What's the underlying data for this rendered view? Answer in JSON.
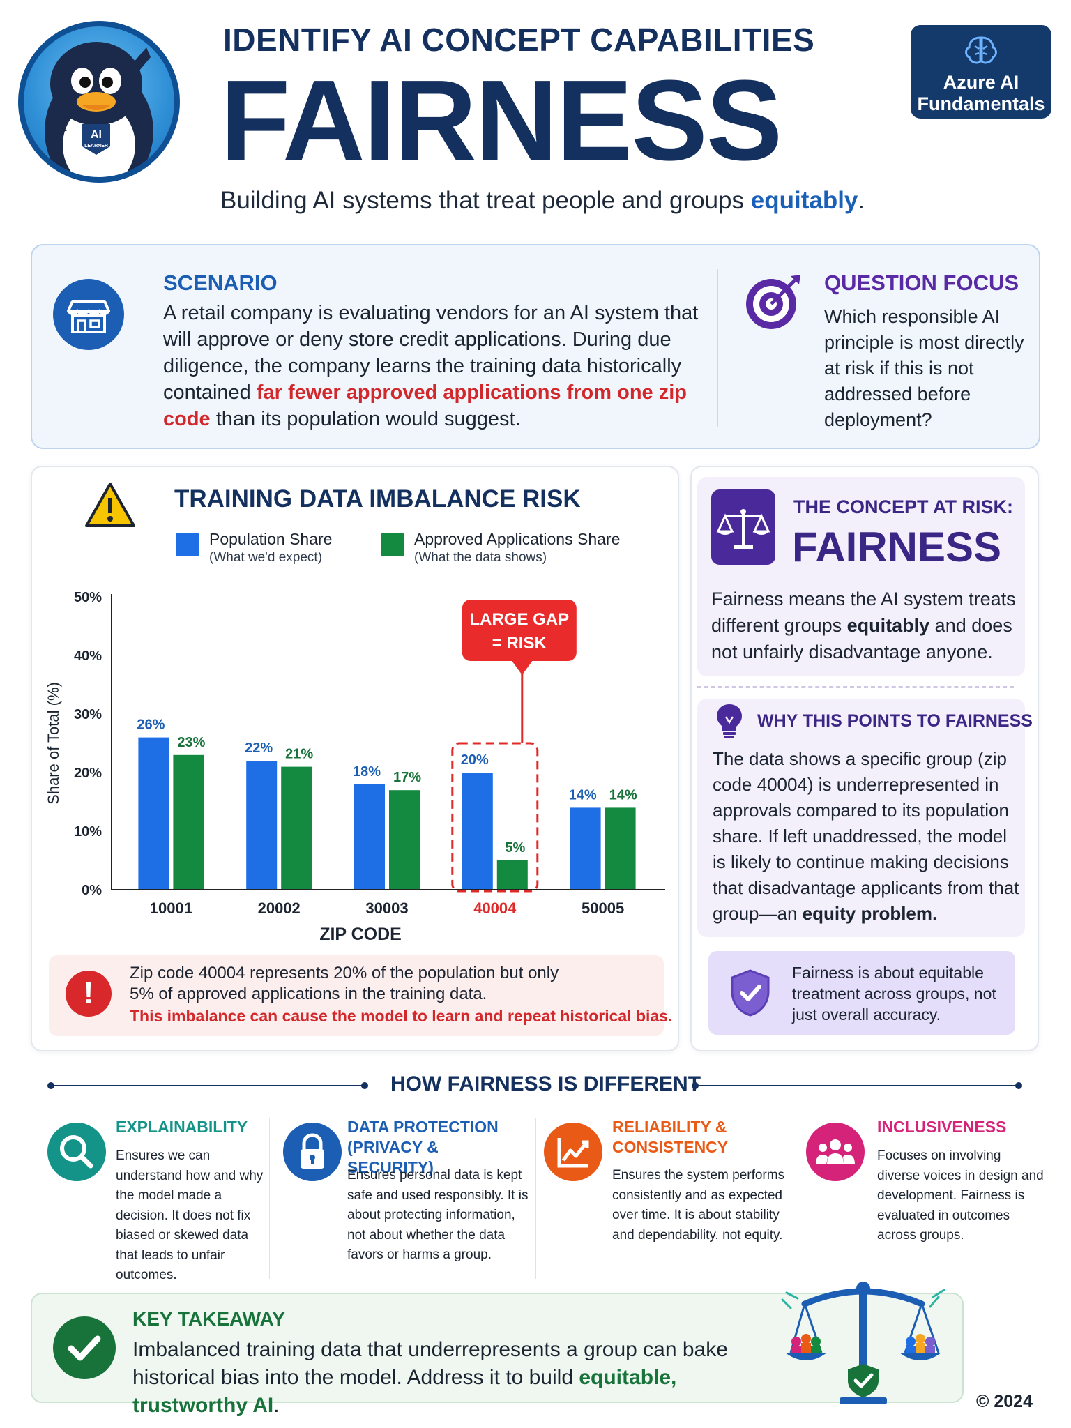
{
  "header": {
    "kicker": "IDENTIFY AI CONCEPT CAPABILITIES",
    "title": "FAIRNESS",
    "subtitle_start": "Building AI systems that treat people and groups ",
    "subtitle_highlight": "equitably",
    "subtitle_end": ".",
    "mascot_badge_top": "AI",
    "mascot_badge_bottom": "LEARNER",
    "badge_line1": "Azure AI",
    "badge_line2": "Fundamentals"
  },
  "scenario": {
    "heading": "SCENARIO",
    "body_start": "A retail company is evaluating vendors for an AI system that will approve or deny store credit applications. During due diligence, the company learns the training data historically contained ",
    "body_highlight": "far fewer approved applications from one zip code",
    "body_end": " than its population would suggest."
  },
  "question_focus": {
    "heading": "QUESTION FOCUS",
    "body": "Which responsible AI principle is most directly at risk if this is not addressed before deployment?"
  },
  "chart_data": {
    "type": "bar",
    "title": "TRAINING DATA IMBALANCE RISK",
    "xlabel": "ZIP CODE",
    "ylabel": "Share of Total (%)",
    "ylim": [
      0,
      50
    ],
    "yticks": [
      "0%",
      "10%",
      "20%",
      "30%",
      "40%",
      "50%"
    ],
    "categories": [
      "10001",
      "20002",
      "30003",
      "40004",
      "50005"
    ],
    "highlight_category": "40004",
    "series": [
      {
        "name": "Population Share",
        "subtitle": "(What we'd expect)",
        "color": "#1e6fe6",
        "label_color": "#1b5eb3",
        "values": [
          26,
          22,
          18,
          20,
          14
        ],
        "labels": [
          "26%",
          "22%",
          "18%",
          "20%",
          "14%"
        ]
      },
      {
        "name": "Approved Applications Share",
        "subtitle": "(What the data shows)",
        "color": "#138a3f",
        "label_color": "#17733a",
        "values": [
          23,
          21,
          17,
          5,
          14
        ],
        "labels": [
          "23%",
          "21%",
          "17%",
          "5%",
          "14%"
        ]
      }
    ],
    "callout_line1": "LARGE GAP",
    "callout_line2": "= RISK"
  },
  "chart_note": {
    "line1": "Zip code 40004 represents 20% of the population but only",
    "line2": "5% of approved applications in the training data.",
    "line3": "This imbalance can cause the model to learn and repeat historical bias."
  },
  "concept": {
    "kicker": "THE CONCEPT AT RISK:",
    "title": "FAIRNESS",
    "body_start": "Fairness means the AI system treats different groups ",
    "body_bold": "equitably",
    "body_end": " and does not unfairly disadvantage anyone."
  },
  "why": {
    "heading": "WHY THIS POINTS TO FAIRNESS",
    "body_start": "The data shows a specific group (zip code 40004) is underrepresented in approvals compared to its population share. If left unaddressed, the model is likely to continue making decisions that disadvantage applicants from that group—an ",
    "body_bold": "equity problem."
  },
  "fairness_note": "Fairness is about equitable treatment across groups, not just overall accuracy.",
  "how_different": {
    "title": "HOW FAIRNESS IS DIFFERENT",
    "items": [
      {
        "title": "EXPLAINABILITY",
        "body": "Ensures we can understand how and why the model made a decision. It does not fix biased or skewed data that leads to unfair outcomes.",
        "color": "#149488",
        "icon": "magnifier-icon"
      },
      {
        "title": "DATA PROTECTION (PRIVACY & SECURITY)",
        "body": "Ensures personal data is kept safe and used responsibly. It is about protecting information, not about whether the data favors or harms a group.",
        "color": "#1b5eb3",
        "icon": "lock-icon"
      },
      {
        "title": "RELIABILITY & CONSISTENCY",
        "body": "Ensures the system performs consistently and as expected over time. It is about stability and dependability. not equity.",
        "color": "#ea5a17",
        "icon": "trend-chart-icon"
      },
      {
        "title": "INCLUSIVENESS",
        "body": "Focuses on involving diverse voices in design and development. Fairness is evaluated in outcomes across groups.",
        "color": "#d6237a",
        "icon": "people-group-icon"
      }
    ]
  },
  "takeaway": {
    "heading": "KEY TAKEAWAY",
    "body_start": "Imbalanced training data that underrepresents a group can bake historical bias into the model. Address it to build ",
    "body_highlight": "equitable, trustworthy AI",
    "body_end": "."
  },
  "copyright": "© 2024"
}
